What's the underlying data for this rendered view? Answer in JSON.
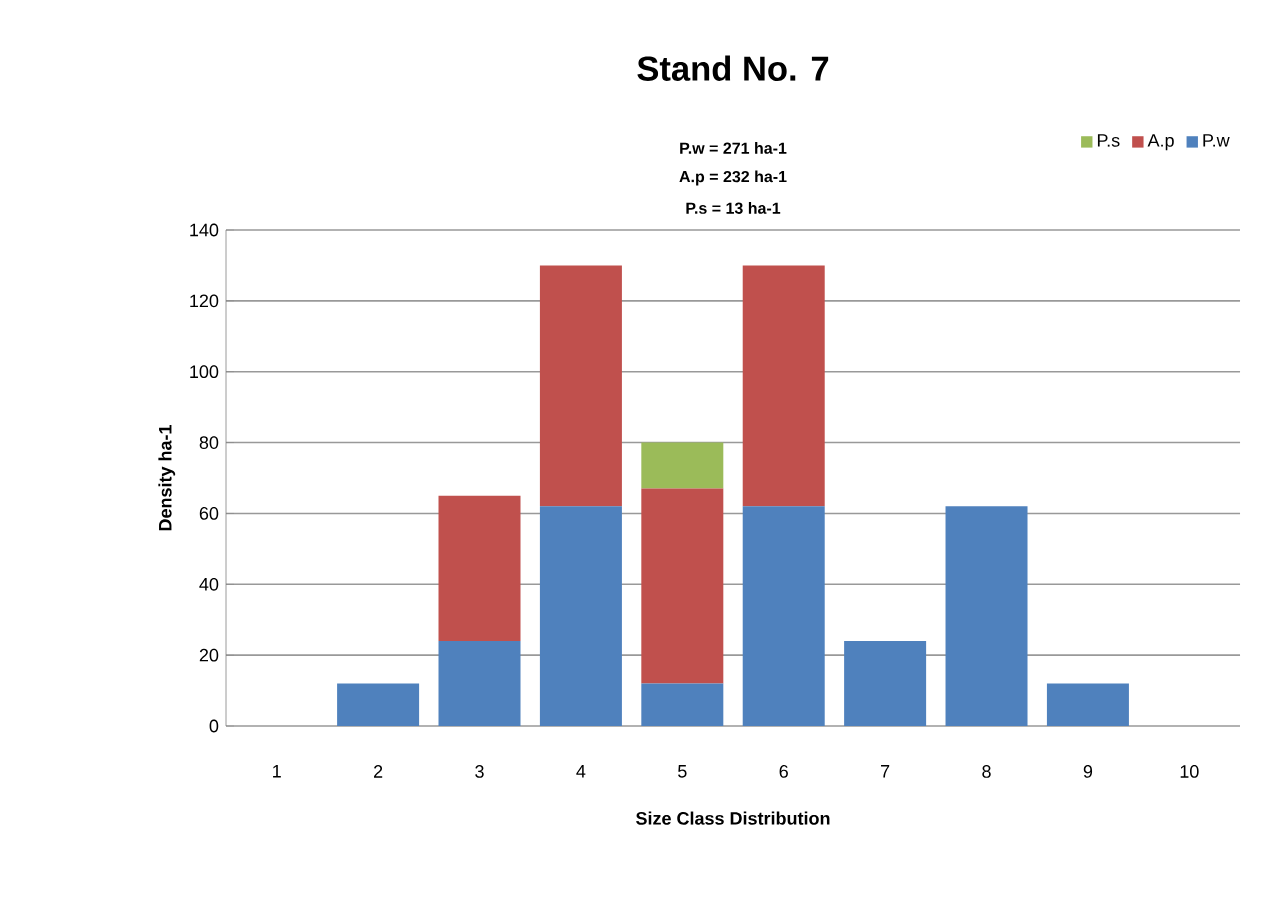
{
  "chart_data": {
    "type": "bar",
    "stacked": true,
    "title": "Stand No. 7",
    "annotations": [
      "P.w = 271 ha-1",
      "A.p = 232 ha-1",
      "P.s = 13 ha-1"
    ],
    "xlabel": "Size Class Distribution",
    "ylabel": "Density ha-1",
    "categories": [
      "1",
      "2",
      "3",
      "4",
      "5",
      "6",
      "7",
      "8",
      "9",
      "10"
    ],
    "series": [
      {
        "name": "P.w",
        "color": "#4f81bd",
        "values": [
          0,
          12,
          24,
          62,
          12,
          62,
          24,
          62,
          12,
          0
        ]
      },
      {
        "name": "A.p",
        "color": "#c0504d",
        "values": [
          0,
          0,
          41,
          68,
          55,
          68,
          0,
          0,
          0,
          0
        ]
      },
      {
        "name": "P.s",
        "color": "#9bbb59",
        "values": [
          0,
          0,
          0,
          0,
          13,
          0,
          0,
          0,
          0,
          0
        ]
      }
    ],
    "ylim": [
      0,
      140
    ],
    "yticks": [
      0,
      20,
      40,
      60,
      80,
      100,
      120,
      140
    ],
    "grid": "y",
    "legend": "top right"
  }
}
